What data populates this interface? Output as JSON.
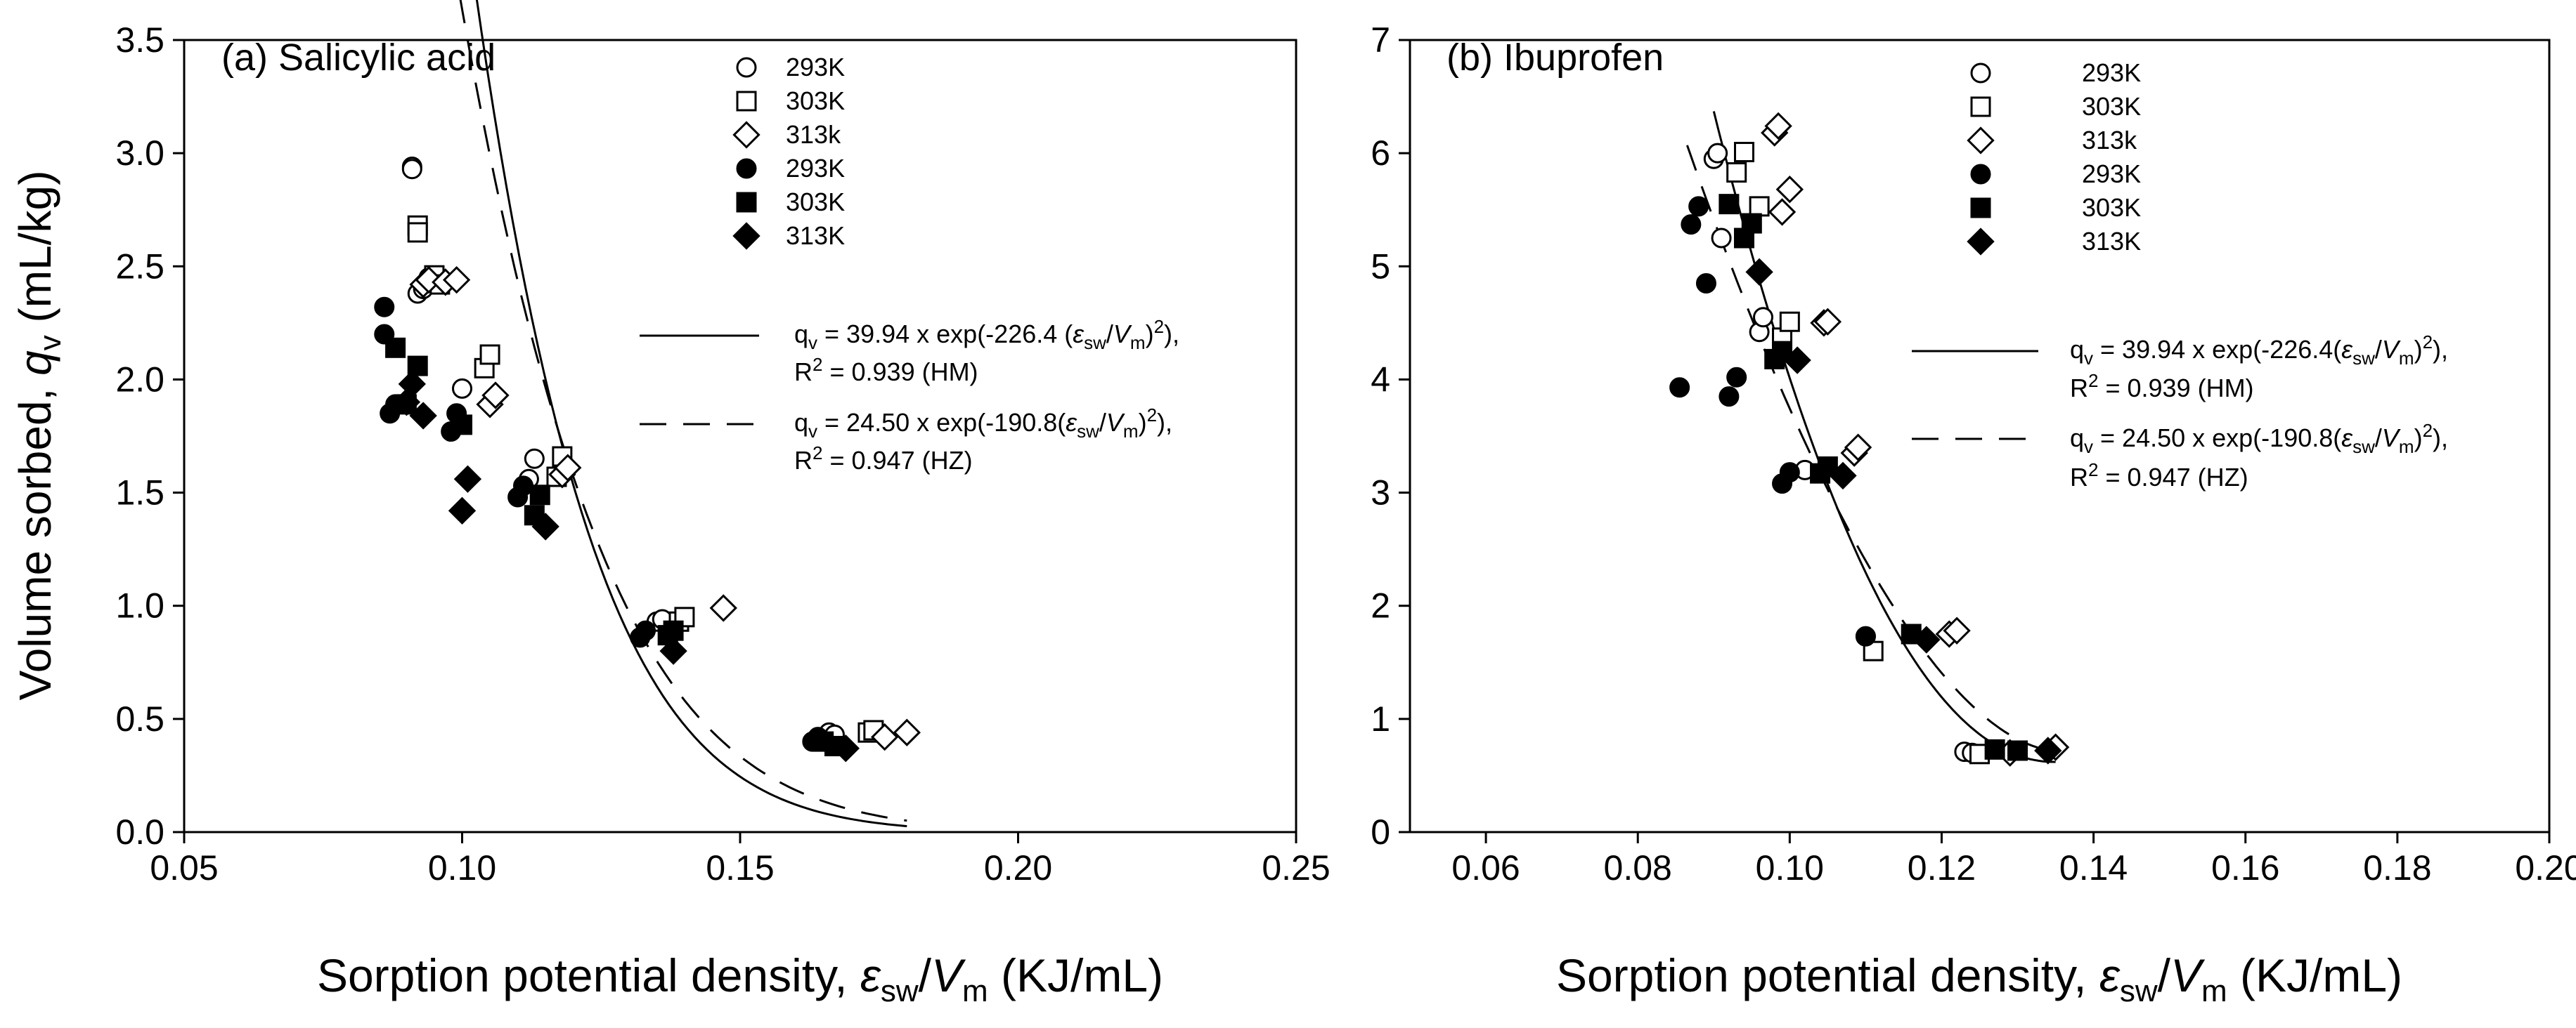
{
  "chart_data": [
    {
      "type": "scatter",
      "title": "(a) Salicylic acid",
      "xlabel_prefix": "Sorption potential density, ",
      "xlabel_sym": "ε",
      "xlabel_sub1": "sw",
      "xlabel_slash": "/",
      "xlabel_v": "V",
      "xlabel_sub2": "m",
      "xlabel_unit": " (KJ/mL)",
      "ylabel_prefix": "Volume sorbed, ",
      "ylabel_sym": "q",
      "ylabel_sub": "v",
      "ylabel_unit": " (mL/kg)",
      "xlim": [
        0.05,
        0.25
      ],
      "ylim": [
        0.0,
        3.5
      ],
      "xticks": [
        0.05,
        0.1,
        0.15,
        0.2,
        0.25
      ],
      "xtick_labels": [
        "0.05",
        "0.10",
        "0.15",
        "0.20",
        "0.25"
      ],
      "yticks": [
        0.0,
        0.5,
        1.0,
        1.5,
        2.0,
        2.5,
        3.0,
        3.5
      ],
      "ytick_labels": [
        "0.0",
        "0.5",
        "1.0",
        "1.5",
        "2.0",
        "2.5",
        "3.0",
        "3.5"
      ],
      "legend_position": "top-right",
      "grid": false,
      "series": [
        {
          "name": "293K",
          "marker": "circle",
          "fill": "open",
          "x": [
            0.091,
            0.091,
            0.092,
            0.093,
            0.094,
            0.1,
            0.112,
            0.113,
            0.135,
            0.136,
            0.166,
            0.167
          ],
          "y": [
            2.94,
            2.93,
            2.38,
            2.4,
            2.45,
            1.96,
            1.56,
            1.65,
            0.93,
            0.94,
            0.44,
            0.43
          ]
        },
        {
          "name": "303K",
          "marker": "square",
          "fill": "open",
          "x": [
            0.092,
            0.092,
            0.095,
            0.096,
            0.104,
            0.105,
            0.117,
            0.118,
            0.139,
            0.14,
            0.173,
            0.174
          ],
          "y": [
            2.68,
            2.65,
            2.46,
            2.42,
            2.05,
            2.11,
            1.57,
            1.66,
            0.93,
            0.95,
            0.44,
            0.45
          ]
        },
        {
          "name": "313k",
          "marker": "diamond",
          "fill": "open",
          "x": [
            0.093,
            0.094,
            0.097,
            0.099,
            0.105,
            0.106,
            0.118,
            0.119,
            0.147,
            0.176,
            0.18
          ],
          "y": [
            2.42,
            2.44,
            2.43,
            2.44,
            1.89,
            1.93,
            1.58,
            1.61,
            0.99,
            0.42,
            0.44
          ]
        },
        {
          "name": "293K",
          "marker": "circle",
          "fill": "filled",
          "x": [
            0.086,
            0.086,
            0.087,
            0.088,
            0.098,
            0.099,
            0.11,
            0.111,
            0.132,
            0.133,
            0.163,
            0.164
          ],
          "y": [
            2.2,
            2.32,
            1.85,
            1.89,
            1.77,
            1.85,
            1.48,
            1.53,
            0.86,
            0.89,
            0.4,
            0.42
          ]
        },
        {
          "name": "303K",
          "marker": "square",
          "fill": "filled",
          "x": [
            0.088,
            0.09,
            0.092,
            0.1,
            0.113,
            0.114,
            0.137,
            0.138,
            0.165,
            0.167
          ],
          "y": [
            2.14,
            1.89,
            2.06,
            1.8,
            1.4,
            1.49,
            0.87,
            0.89,
            0.4,
            0.38
          ]
        },
        {
          "name": "313K",
          "marker": "diamond",
          "fill": "filled",
          "x": [
            0.09,
            0.091,
            0.093,
            0.1,
            0.101,
            0.115,
            0.138,
            0.169
          ],
          "y": [
            1.9,
            1.98,
            1.84,
            1.42,
            1.56,
            1.35,
            0.8,
            0.37
          ]
        }
      ],
      "fits": [
        {
          "style": "solid",
          "label": "HM",
          "coef": 39.94,
          "k": 226.4,
          "x_range": [
            0.09,
            0.18
          ],
          "eq_prefix": "q",
          "eq_sub": "v",
          "eq_body": " = 39.94 x exp(-226.4 (",
          "eq_sym": "ε",
          "eq_sub1": "sw",
          "eq_slash": "/",
          "eq_v": "V",
          "eq_sub2": "m",
          "eq_close": ")",
          "eq_sup": "2",
          "eq_end": "),",
          "r2_prefix": "R",
          "r2_sup": "2",
          "r2_rest": " = 0.939 (HM)"
        },
        {
          "style": "dashed",
          "label": "HZ",
          "coef": 24.5,
          "k": 190.8,
          "x_range": [
            0.086,
            0.18
          ],
          "eq_prefix": "q",
          "eq_sub": "v",
          "eq_body": " = 24.50 x exp(-190.8(",
          "eq_sym": "ε",
          "eq_sub1": "sw",
          "eq_slash": "/",
          "eq_v": "V",
          "eq_sub2": "m",
          "eq_close": ")",
          "eq_sup": "2",
          "eq_end": "),",
          "r2_prefix": "R",
          "r2_sup": "2",
          "r2_rest": " = 0.947 (HZ)"
        }
      ]
    },
    {
      "type": "scatter",
      "title": "(b) Ibuprofen",
      "xlabel_prefix": "Sorption potential density, ",
      "xlabel_sym": "ε",
      "xlabel_sub1": "sw",
      "xlabel_slash": "/",
      "xlabel_v": "V",
      "xlabel_sub2": "m",
      "xlabel_unit": " (KJ/mL)",
      "xlim": [
        0.05,
        0.2
      ],
      "ylim": [
        0,
        7
      ],
      "xticks": [
        0.06,
        0.08,
        0.1,
        0.12,
        0.14,
        0.16,
        0.18,
        0.2
      ],
      "xtick_labels": [
        "0.06",
        "0.08",
        "0.10",
        "0.12",
        "0.14",
        "0.16",
        "0.18",
        "0.20"
      ],
      "yticks": [
        0,
        1,
        2,
        3,
        4,
        5,
        6,
        7
      ],
      "ytick_labels": [
        "0",
        "1",
        "2",
        "3",
        "4",
        "5",
        "6",
        "7"
      ],
      "legend_position": "top-right",
      "grid": false,
      "series": [
        {
          "name": "293K",
          "marker": "circle",
          "fill": "open",
          "x": [
            0.09,
            0.0905,
            0.091,
            0.096,
            0.0965,
            0.102,
            0.11,
            0.123,
            0.124
          ],
          "y": [
            5.95,
            6.0,
            5.25,
            4.42,
            4.55,
            3.2,
            1.73,
            0.71,
            0.7
          ]
        },
        {
          "name": "303K",
          "marker": "square",
          "fill": "open",
          "x": [
            0.093,
            0.094,
            0.096,
            0.099,
            0.1,
            0.111,
            0.125
          ],
          "y": [
            5.83,
            6.01,
            5.53,
            4.37,
            4.51,
            1.6,
            0.69
          ]
        },
        {
          "name": "313k",
          "marker": "diamond",
          "fill": "open",
          "x": [
            0.098,
            0.0985,
            0.099,
            0.1,
            0.1045,
            0.105,
            0.1085,
            0.109,
            0.121,
            0.122,
            0.129,
            0.135
          ],
          "y": [
            6.18,
            6.24,
            5.48,
            5.68,
            4.5,
            4.51,
            3.35,
            3.4,
            1.75,
            1.78,
            0.7,
            0.75
          ]
        },
        {
          "name": "293K",
          "marker": "circle",
          "fill": "filled",
          "x": [
            0.0855,
            0.087,
            0.088,
            0.089,
            0.092,
            0.093,
            0.099,
            0.1,
            0.11
          ],
          "y": [
            3.93,
            5.37,
            5.53,
            4.85,
            3.85,
            4.02,
            3.08,
            3.18,
            1.73
          ]
        },
        {
          "name": "303K",
          "marker": "square",
          "fill": "filled",
          "x": [
            0.092,
            0.094,
            0.095,
            0.098,
            0.099,
            0.104,
            0.105,
            0.116,
            0.127,
            0.13
          ],
          "y": [
            5.55,
            5.25,
            5.38,
            4.18,
            4.25,
            3.17,
            3.23,
            1.75,
            0.73,
            0.72
          ]
        },
        {
          "name": "313K",
          "marker": "diamond",
          "fill": "filled",
          "x": [
            0.096,
            0.101,
            0.107,
            0.118,
            0.134
          ],
          "y": [
            4.95,
            4.17,
            3.15,
            1.7,
            0.72
          ]
        }
      ],
      "fits": [
        {
          "style": "solid",
          "label": "HM",
          "model": "steep",
          "x_range": [
            0.09,
            0.135
          ],
          "eq_prefix": "q",
          "eq_sub": "v",
          "eq_body": " = 39.94 x exp(-226.4(",
          "eq_sym": "ε",
          "eq_sub1": "sw",
          "eq_slash": "/",
          "eq_v": "V",
          "eq_sub2": "m",
          "eq_close": ")",
          "eq_sup": "2",
          "eq_end": "),",
          "r2_prefix": "R",
          "r2_sup": "2",
          "r2_rest": " = 0.939 (HM)"
        },
        {
          "style": "dashed",
          "label": "HZ",
          "model": "steep",
          "x_range": [
            0.0865,
            0.135
          ],
          "eq_prefix": "q",
          "eq_sub": "v",
          "eq_body": " = 24.50 x exp(-190.8(",
          "eq_sym": "ε",
          "eq_sub1": "sw",
          "eq_slash": "/",
          "eq_v": "V",
          "eq_sub2": "m",
          "eq_close": ")",
          "eq_sup": "2",
          "eq_end": "),",
          "r2_prefix": "R",
          "r2_sup": "2",
          "r2_rest": " = 0.947 (HZ)"
        }
      ]
    }
  ]
}
